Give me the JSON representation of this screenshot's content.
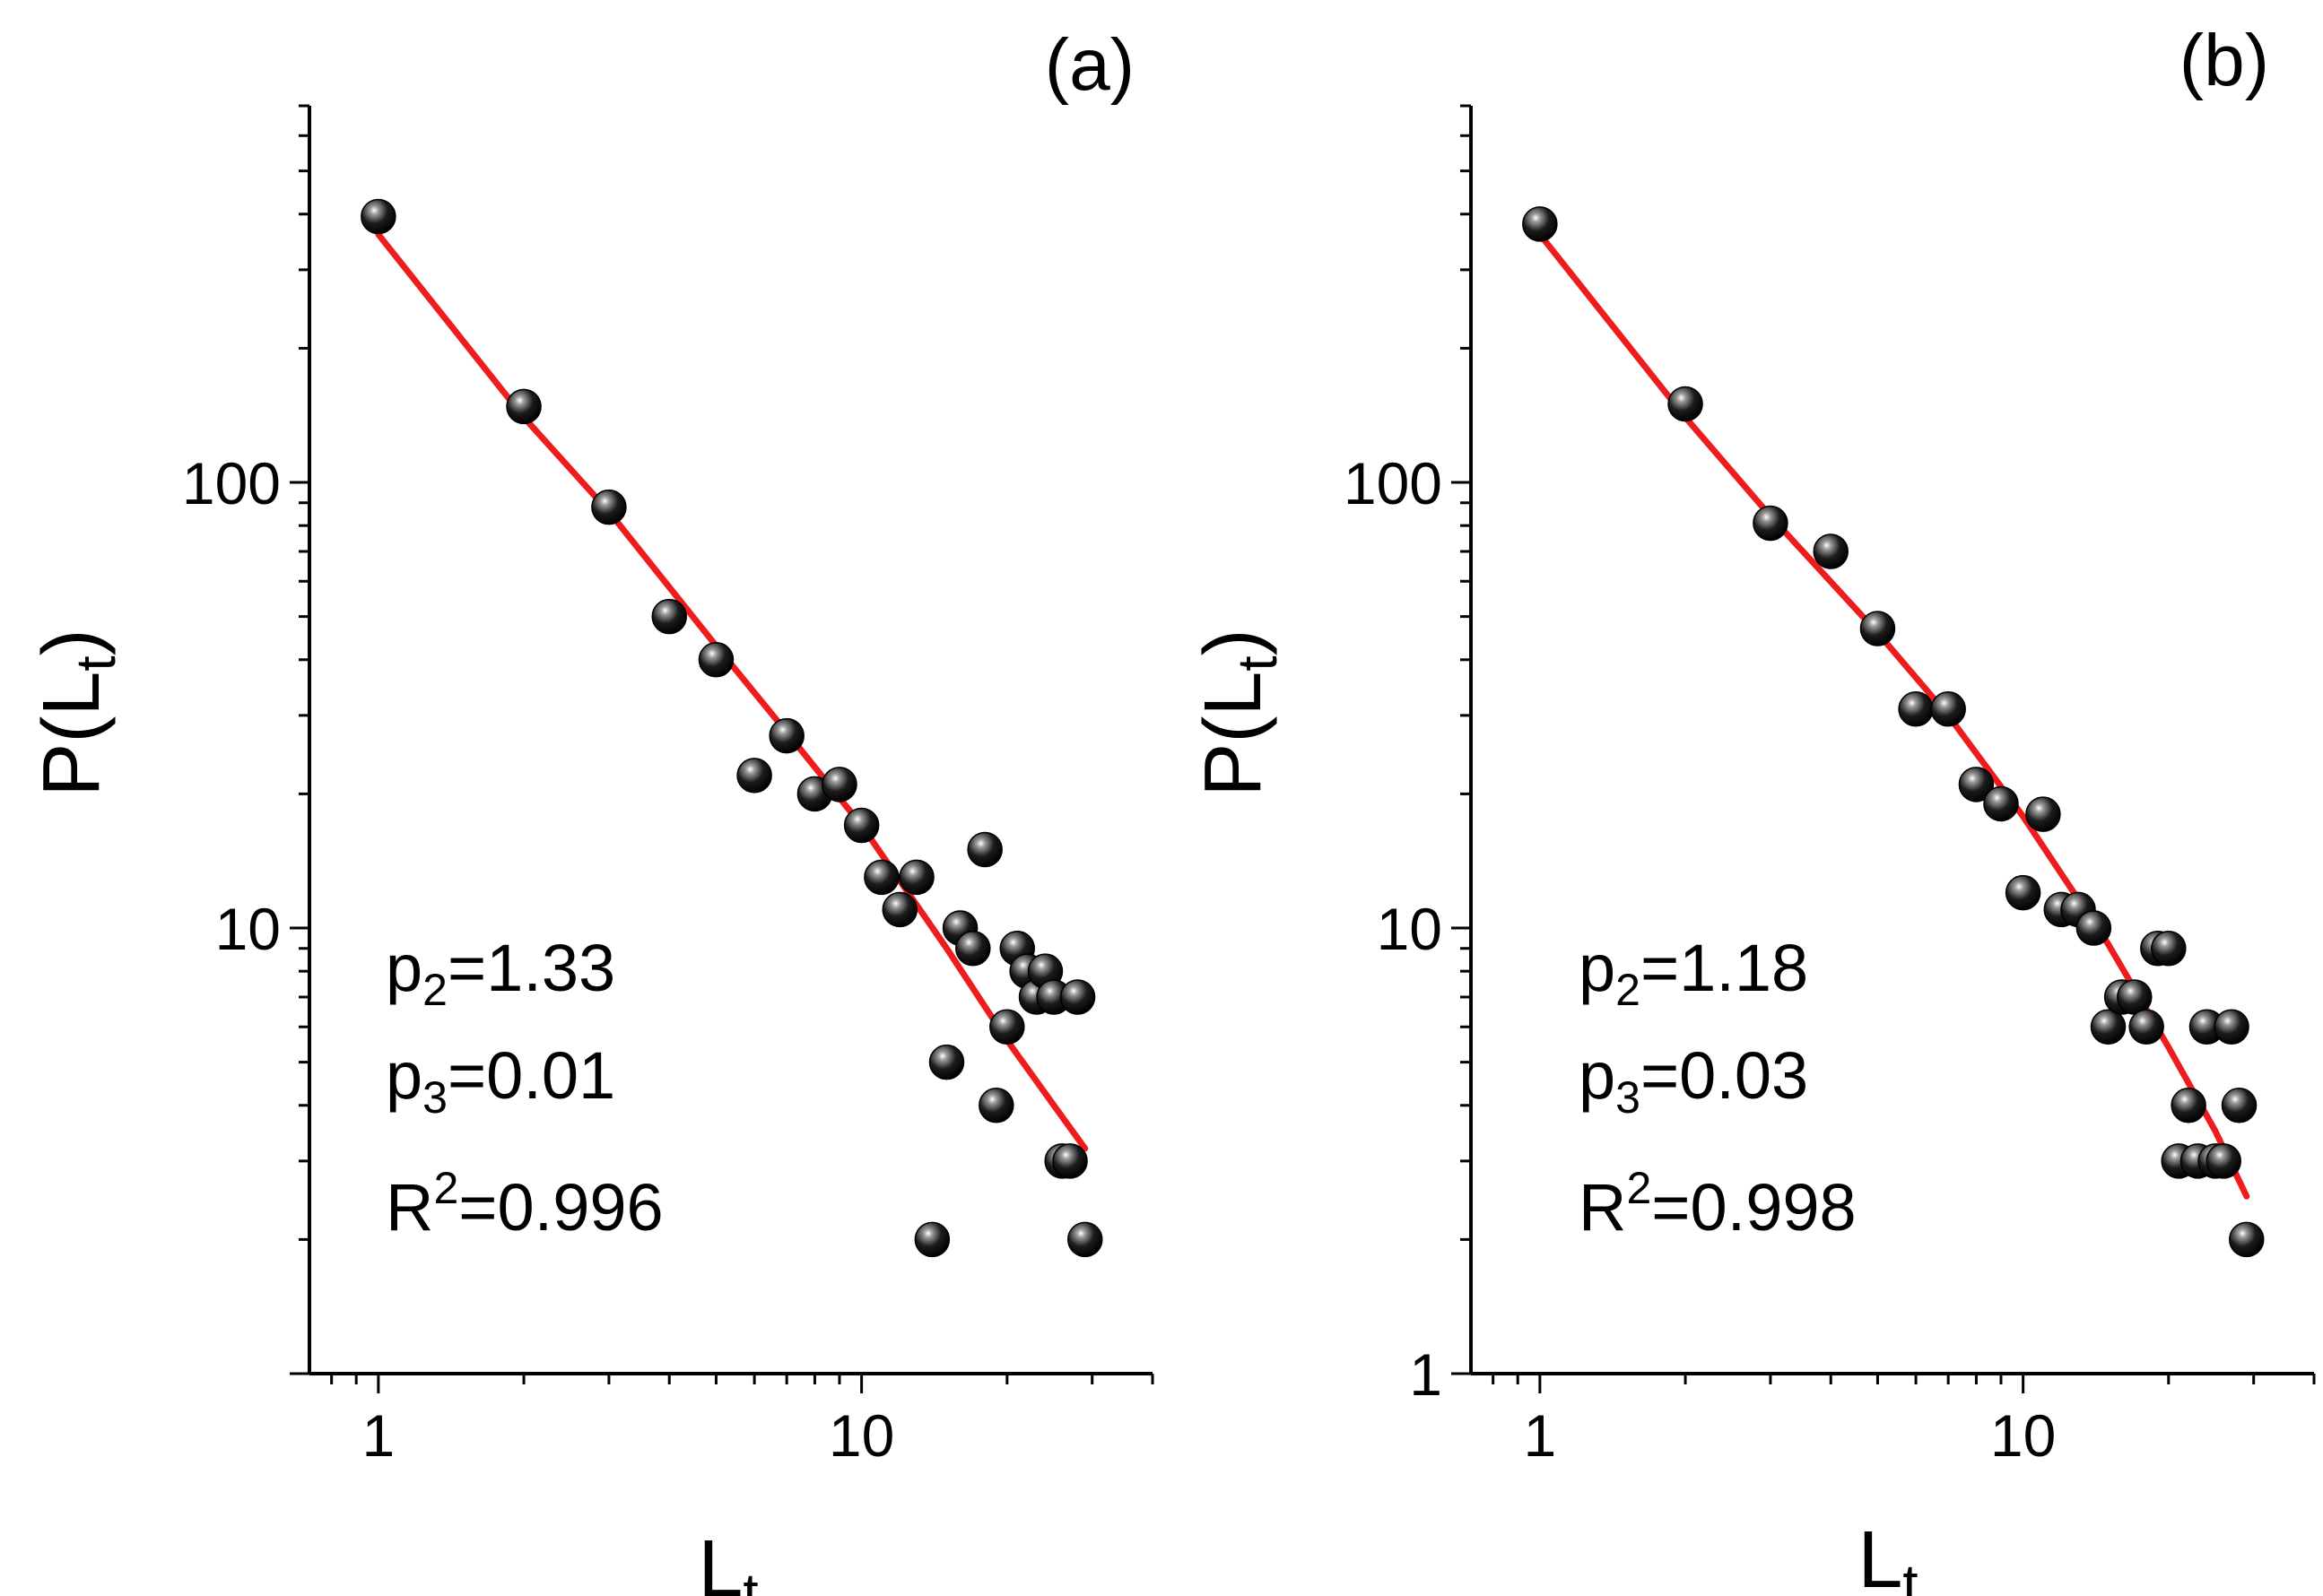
{
  "chart_data": [
    {
      "type": "scatter",
      "panel_label": "(a)",
      "xscale": "log",
      "yscale": "log",
      "xlim": [
        0.72,
        40
      ],
      "ylim": [
        1.0,
        700
      ],
      "xticks": [
        {
          "value": 1,
          "label": "1"
        },
        {
          "value": 10,
          "label": "10"
        }
      ],
      "yticks": [
        {
          "value": 10,
          "label": "10"
        },
        {
          "value": 100,
          "label": "100"
        }
      ],
      "xlabel": {
        "main": "L",
        "sub": "t"
      },
      "ylabel": {
        "main": "P(L",
        "sub": "t",
        "close": ")"
      },
      "series": [
        {
          "name": "data",
          "marker": "sphere",
          "color": "#111111",
          "points": [
            [
              1,
              395
            ],
            [
              2,
              148
            ],
            [
              3,
              88
            ],
            [
              4,
              50
            ],
            [
              5,
              40
            ],
            [
              6,
              22
            ],
            [
              7,
              27
            ],
            [
              8,
              20
            ],
            [
              9,
              21
            ],
            [
              10,
              17
            ],
            [
              11,
              13
            ],
            [
              12,
              11
            ],
            [
              13,
              13
            ],
            [
              14,
              2
            ],
            [
              15,
              5
            ],
            [
              16,
              10
            ],
            [
              17,
              9
            ],
            [
              18,
              15
            ],
            [
              19,
              4
            ],
            [
              20,
              6
            ],
            [
              21,
              9
            ],
            [
              22,
              8
            ],
            [
              23,
              7
            ],
            [
              24,
              8
            ],
            [
              25,
              7
            ],
            [
              26,
              3
            ],
            [
              27,
              3
            ],
            [
              28,
              7
            ],
            [
              29,
              2
            ]
          ]
        },
        {
          "name": "fit",
          "type": "line",
          "color": "#ee1c1c",
          "points": [
            [
              1,
              360
            ],
            [
              2,
              140
            ],
            [
              3,
              86
            ],
            [
              5,
              43
            ],
            [
              7,
              27.5
            ],
            [
              10,
              17
            ],
            [
              15,
              9
            ],
            [
              20,
              5.6
            ],
            [
              25,
              4.0
            ],
            [
              29,
              3.2
            ]
          ]
        }
      ],
      "annotations": [
        {
          "base": "p",
          "sub": "2",
          "rest": "=1.33"
        },
        {
          "base": "p",
          "sub": "3",
          "rest": "=0.01"
        },
        {
          "base": "R",
          "sup": "2",
          "rest": "=0.996"
        }
      ]
    },
    {
      "type": "scatter",
      "panel_label": "(b)",
      "xscale": "log",
      "yscale": "log",
      "xlim": [
        0.72,
        40
      ],
      "ylim": [
        1.0,
        700
      ],
      "xticks": [
        {
          "value": 1,
          "label": "1"
        },
        {
          "value": 10,
          "label": "10"
        }
      ],
      "yticks": [
        {
          "value": 1,
          "label": "1"
        },
        {
          "value": 10,
          "label": "10"
        },
        {
          "value": 100,
          "label": "100"
        }
      ],
      "xlabel": {
        "main": "L",
        "sub": "t"
      },
      "ylabel": {
        "main": "P(L",
        "sub": "t",
        "close": ")"
      },
      "series": [
        {
          "name": "data",
          "marker": "sphere",
          "color": "#111111",
          "points": [
            [
              1,
              380
            ],
            [
              2,
              150
            ],
            [
              3,
              81
            ],
            [
              4,
              70
            ],
            [
              5,
              47
            ],
            [
              6,
              31
            ],
            [
              7,
              31
            ],
            [
              8,
              21
            ],
            [
              9,
              19
            ],
            [
              10,
              12
            ],
            [
              11,
              18
            ],
            [
              12,
              11
            ],
            [
              13,
              11
            ],
            [
              14,
              10
            ],
            [
              15,
              6
            ],
            [
              16,
              7
            ],
            [
              17,
              7
            ],
            [
              18,
              6
            ],
            [
              19,
              9
            ],
            [
              20,
              9
            ],
            [
              21,
              3
            ],
            [
              22,
              4
            ],
            [
              23,
              3
            ],
            [
              24,
              6
            ],
            [
              25,
              3
            ],
            [
              26,
              3
            ],
            [
              27,
              6
            ],
            [
              28,
              4
            ],
            [
              29,
              2
            ]
          ]
        },
        {
          "name": "fit",
          "type": "line",
          "color": "#ee1c1c",
          "points": [
            [
              1,
              360
            ],
            [
              2,
              140
            ],
            [
              3,
              84
            ],
            [
              5,
              46
            ],
            [
              7,
              30
            ],
            [
              10,
              17.8
            ],
            [
              15,
              9.2
            ],
            [
              20,
              5.4
            ],
            [
              25,
              3.5
            ],
            [
              29,
              2.5
            ]
          ]
        }
      ],
      "annotations": [
        {
          "base": "p",
          "sub": "2",
          "rest": "=1.18"
        },
        {
          "base": "p",
          "sub": "3",
          "rest": "=0.03"
        },
        {
          "base": "R",
          "sup": "2",
          "rest": "=0.998"
        }
      ]
    }
  ]
}
